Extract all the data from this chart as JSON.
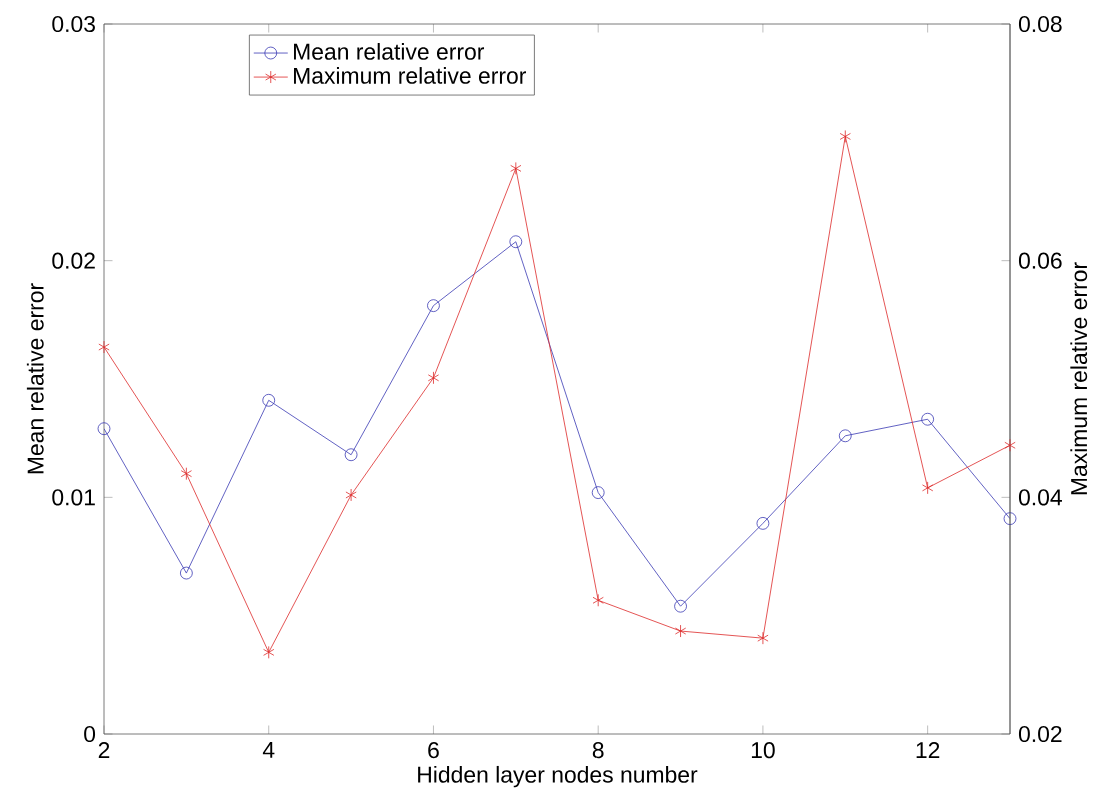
{
  "chart_data": {
    "type": "line",
    "xlabel": "Hidden layer nodes number",
    "ylabel": "Mean relative error",
    "y2label": "Maximum relative error",
    "x": [
      2,
      3,
      4,
      5,
      6,
      7,
      8,
      9,
      10,
      11,
      12,
      13
    ],
    "xlim": [
      2,
      13
    ],
    "xticks": [
      2,
      4,
      6,
      8,
      10,
      12
    ],
    "ylim": [
      0,
      0.03
    ],
    "yticks": [
      0,
      0.01,
      0.02,
      0.03
    ],
    "y2lim": [
      0.02,
      0.08
    ],
    "y2ticks": [
      0.02,
      0.04,
      0.06,
      0.08
    ],
    "legend": "top left",
    "grid": false,
    "line_style": "solid",
    "series": [
      {
        "name": "Mean relative error",
        "color": "#3a3ab4",
        "marker": "circle",
        "values": [
          0.0129,
          0.0068,
          0.0141,
          0.0118,
          0.0181,
          0.0208,
          0.0102,
          0.0054,
          0.0089,
          0.0126,
          0.0133,
          0.0091
        ]
      },
      {
        "name": "Maximum relative error",
        "color": "#dd2a2a",
        "marker": "cross",
        "axis": "y2",
        "values": [
          0.0527,
          0.042,
          0.0269,
          0.0402,
          0.0501,
          0.0678,
          0.0313,
          0.0287,
          0.0281,
          0.0705,
          0.0408,
          0.0444
        ]
      }
    ]
  }
}
